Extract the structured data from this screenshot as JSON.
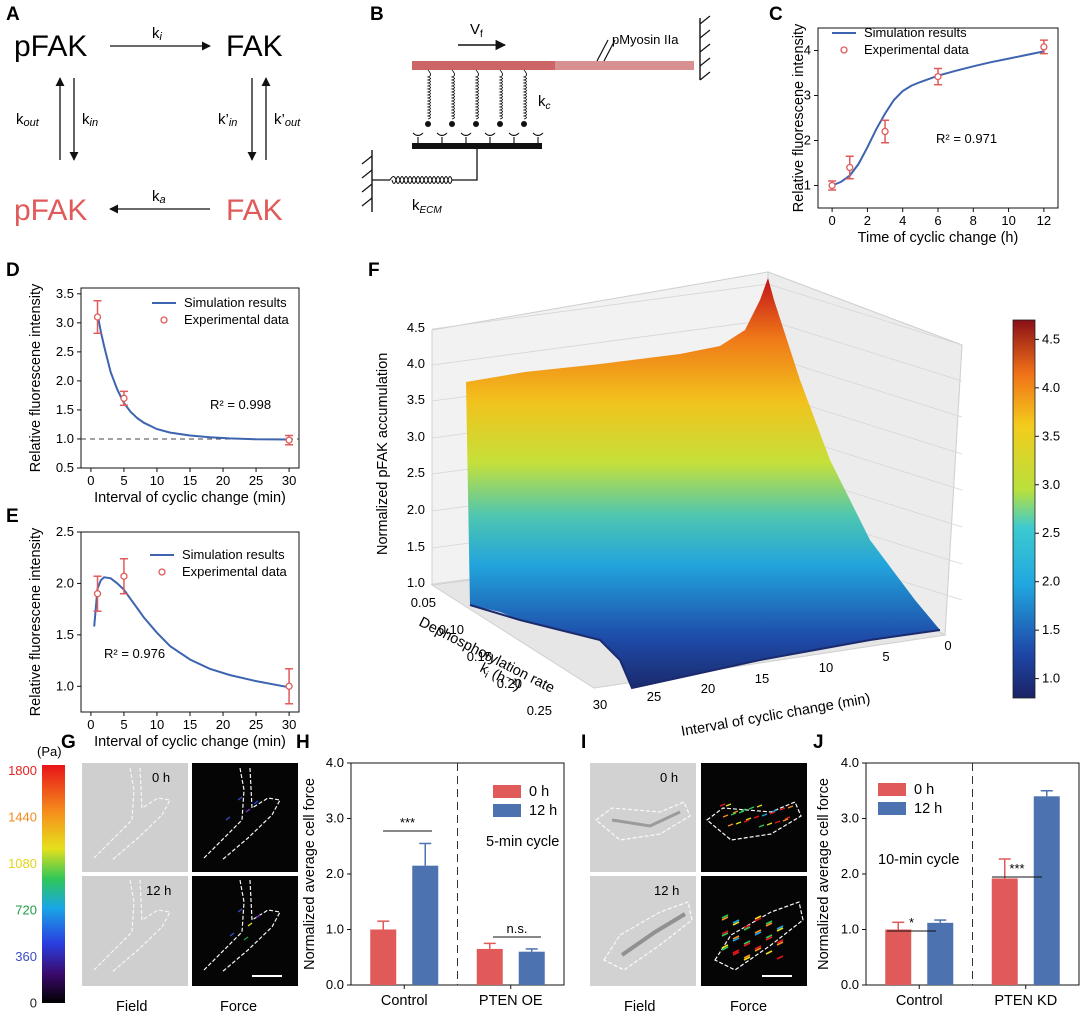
{
  "colors": {
    "blue": "#3e64b0",
    "red": "#e05a5a",
    "bar_red": "#e05a5a",
    "bar_blue": "#4c72b0",
    "fiber_light": "#d99090",
    "fiber_dark": "#cc6666"
  },
  "panel_labels": {
    "A": "A",
    "B": "B",
    "C": "C",
    "D": "D",
    "E": "E",
    "F": "F",
    "G": "G",
    "H": "H",
    "I": "I",
    "J": "J"
  },
  "panelA": {
    "pfak_top": "pFAK",
    "fak_top": "FAK",
    "pfak_bottom": "pFAK",
    "fak_bottom": "FAK",
    "ki": "k",
    "ki_sub": "i",
    "kout": "k",
    "kout_sub": "out",
    "kin": "k",
    "kin_sub": "in",
    "kprime_in": "k’",
    "kprime_in_sub": "in",
    "kprime_out": "k’",
    "kprime_out_sub": "out",
    "ka": "k",
    "ka_sub": "a"
  },
  "panelB": {
    "vf": "V",
    "vf_sub": "f",
    "myosin": "pMyosin IIa",
    "kc": "k",
    "kc_sub": "c",
    "kecm": "k",
    "kecm_sub": "ECM"
  },
  "shared": {
    "sim_label": "Simulation results",
    "exp_label": "Experimental data",
    "ylabel_fluor": "Relative fluorescene intensity",
    "xlabel_interval": "Interval of cyclic change (min)"
  },
  "chart_data": [
    {
      "id": "C",
      "type": "line",
      "xlabel": "Time of cyclic change (h)",
      "ylabel": "Relative fluorescene intensity",
      "xlim": [
        -0.8,
        12.8
      ],
      "ylim": [
        0.5,
        4.5
      ],
      "xticks": [
        0,
        2,
        4,
        6,
        8,
        10,
        12
      ],
      "yticks": [
        1,
        2,
        3,
        4
      ],
      "r2": "R² = 0.971",
      "sim": {
        "x": [
          0,
          0.5,
          1,
          1.5,
          2,
          2.5,
          3,
          3.5,
          4,
          4.5,
          5,
          6,
          7,
          8,
          9,
          10,
          11,
          12
        ],
        "y": [
          1.0,
          1.08,
          1.22,
          1.48,
          1.85,
          2.25,
          2.6,
          2.9,
          3.1,
          3.22,
          3.3,
          3.44,
          3.55,
          3.65,
          3.74,
          3.82,
          3.9,
          3.98
        ]
      },
      "exp": {
        "x": [
          0,
          1,
          3,
          6,
          12
        ],
        "y": [
          1.0,
          1.4,
          2.2,
          3.42,
          4.08
        ],
        "err": [
          0.1,
          0.25,
          0.25,
          0.18,
          0.15
        ]
      }
    },
    {
      "id": "D",
      "type": "line",
      "xlabel": "Interval of cyclic change (min)",
      "ylabel": "Relative fluorescene intensity",
      "xlim": [
        -1.5,
        31.5
      ],
      "ylim": [
        0.5,
        3.6
      ],
      "xticks": [
        0,
        5,
        10,
        15,
        20,
        25,
        30
      ],
      "yticks": [
        0.5,
        1.0,
        1.5,
        2.0,
        2.5,
        3.0,
        3.5
      ],
      "r2": "R² = 0.998",
      "baseline": 1.0,
      "sim": {
        "x": [
          1,
          1.5,
          2,
          3,
          4,
          5,
          6,
          7,
          8,
          10,
          12,
          15,
          18,
          21,
          25,
          30
        ],
        "y": [
          3.15,
          2.85,
          2.6,
          2.15,
          1.85,
          1.62,
          1.47,
          1.36,
          1.28,
          1.17,
          1.11,
          1.06,
          1.03,
          1.01,
          0.995,
          0.99
        ]
      },
      "exp": {
        "x": [
          1,
          5,
          30
        ],
        "y": [
          3.1,
          1.7,
          0.98
        ],
        "err": [
          0.28,
          0.12,
          0.08
        ]
      }
    },
    {
      "id": "E",
      "type": "line",
      "xlabel": "Interval of cyclic change (min)",
      "ylabel": "Relative fluorescene intensity",
      "xlim": [
        -1.5,
        31.5
      ],
      "ylim": [
        0.75,
        2.5
      ],
      "xticks": [
        0,
        5,
        10,
        15,
        20,
        25,
        30
      ],
      "yticks": [
        1.0,
        1.5,
        2.0,
        2.5
      ],
      "r2": "R² = 0.976",
      "sim": {
        "x": [
          0.5,
          1,
          1.5,
          2,
          3,
          4,
          5,
          6,
          7,
          8,
          10,
          12,
          15,
          18,
          21,
          25,
          30
        ],
        "y": [
          1.58,
          1.95,
          2.03,
          2.06,
          2.05,
          2.0,
          1.94,
          1.85,
          1.76,
          1.67,
          1.52,
          1.39,
          1.26,
          1.17,
          1.11,
          1.05,
          0.99
        ]
      },
      "exp": {
        "x": [
          1,
          5,
          30
        ],
        "y": [
          1.9,
          2.07,
          1.0
        ],
        "err": [
          0.17,
          0.17,
          0.17
        ]
      }
    },
    {
      "id": "F",
      "type": "surface",
      "zlabel": "Normalized pFAK accumulation",
      "ylabel": "Dephosphorylation rate",
      "ylabel2": "k",
      "ylabel2_sub": "i",
      "ylabel2_unit": " (h⁻¹)",
      "xlabel": "Interval of cyclic change (min)",
      "zticks": [
        "1.0",
        "1.5",
        "2.0",
        "2.5",
        "3.0",
        "3.5",
        "4.0",
        "4.5"
      ],
      "kticks": [
        "0.05",
        "0.10",
        "0.15",
        "0.20",
        "0.25"
      ],
      "tticks": [
        "30",
        "25",
        "20",
        "15",
        "10",
        "5",
        "0"
      ],
      "colorbar": {
        "min": 0.8,
        "max": 4.7,
        "ticks": [
          "1.0",
          "1.5",
          "2.0",
          "2.5",
          "3.0",
          "3.5",
          "4.0",
          "4.5"
        ]
      }
    },
    {
      "id": "H",
      "type": "bar",
      "ylabel": "Normalized average cell force",
      "ylim": [
        0,
        4.0
      ],
      "yticks": [
        "0.0",
        "1.0",
        "2.0",
        "3.0",
        "4.0"
      ],
      "groups": [
        "Control",
        "PTEN OE"
      ],
      "legend": [
        "0 h",
        "12 h"
      ],
      "cycle": "5-min cycle",
      "series": [
        {
          "name": "0 h",
          "values": [
            1.0,
            0.65
          ],
          "err": [
            0.15,
            0.1
          ]
        },
        {
          "name": "12 h",
          "values": [
            2.15,
            0.6
          ],
          "err": [
            0.4,
            0.05
          ]
        }
      ],
      "sig": [
        "***",
        "n.s."
      ]
    },
    {
      "id": "J",
      "type": "bar",
      "ylabel": "Normalized average cell force",
      "ylim": [
        0,
        4.0
      ],
      "yticks": [
        "0.0",
        "1.0",
        "2.0",
        "3.0",
        "4.0"
      ],
      "groups": [
        "Control",
        "PTEN KD"
      ],
      "legend": [
        "0 h",
        "12 h"
      ],
      "cycle": "10-min cycle",
      "series": [
        {
          "name": "0 h",
          "values": [
            1.0,
            1.92
          ],
          "err": [
            0.13,
            0.35
          ]
        },
        {
          "name": "12 h",
          "values": [
            1.12,
            3.4
          ],
          "err": [
            0.05,
            0.1
          ]
        }
      ],
      "sig": [
        "*",
        "***"
      ]
    }
  ],
  "pa_colorbar": {
    "unit": "(Pa)",
    "ticks": [
      "1800",
      "1440",
      "1080",
      "720",
      "360",
      "0"
    ],
    "tick_colors": [
      "#e8231f",
      "#f08a1c",
      "#e3d317",
      "#1d9e48",
      "#3a4ec4",
      "#222222"
    ]
  },
  "panelG": {
    "t0": "0 h",
    "t12": "12 h",
    "field": "Field",
    "force": "Force"
  },
  "panelI": {
    "t0": "0 h",
    "t12": "12 h",
    "field": "Field",
    "force": "Force"
  }
}
